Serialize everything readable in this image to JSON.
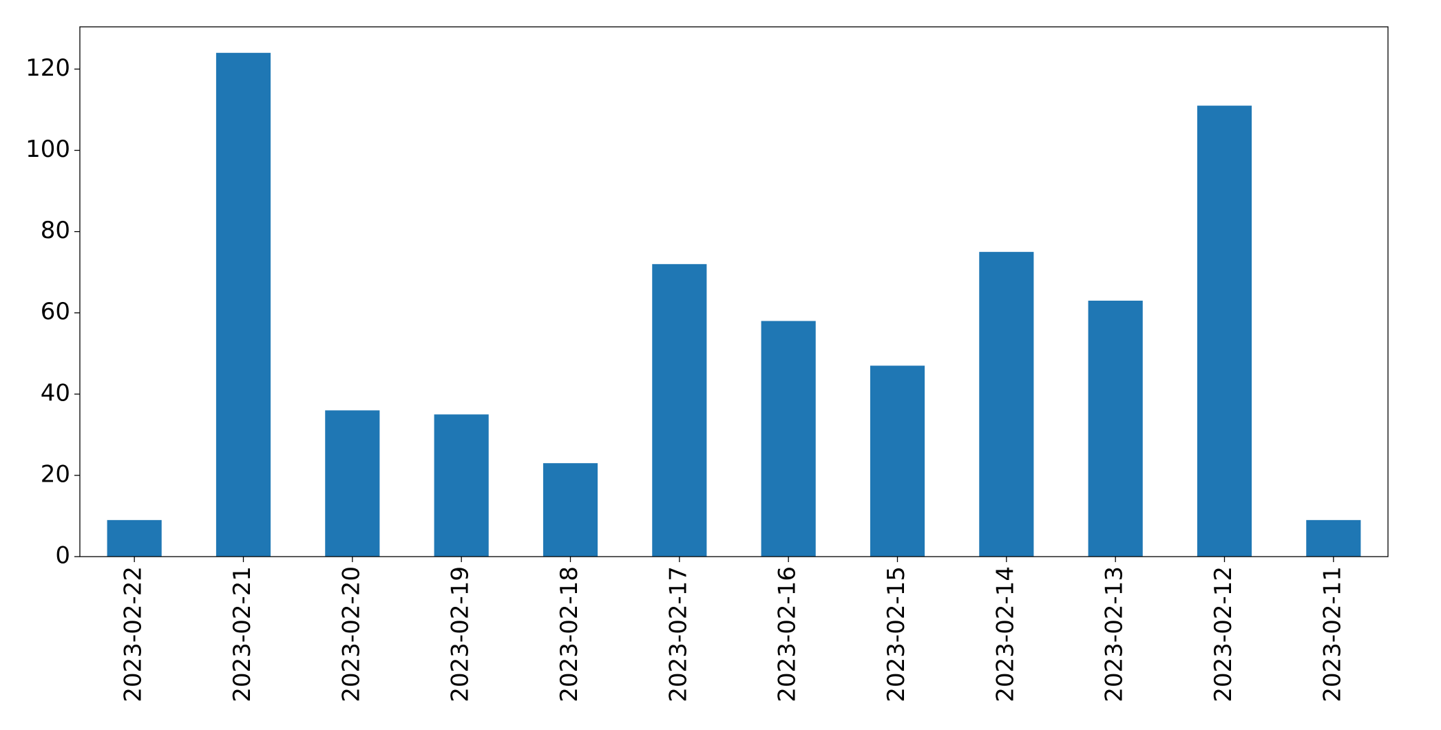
{
  "chart_data": {
    "type": "bar",
    "categories": [
      "2023-02-22",
      "2023-02-21",
      "2023-02-20",
      "2023-02-19",
      "2023-02-18",
      "2023-02-17",
      "2023-02-16",
      "2023-02-15",
      "2023-02-14",
      "2023-02-13",
      "2023-02-12",
      "2023-02-11"
    ],
    "values": [
      9,
      124,
      36,
      35,
      23,
      72,
      58,
      47,
      75,
      63,
      111,
      9
    ],
    "color": "#1f77b4",
    "ylim": [
      0,
      130.4
    ],
    "yticks": [
      0,
      20,
      40,
      60,
      80,
      100,
      120
    ],
    "grid": false
  }
}
